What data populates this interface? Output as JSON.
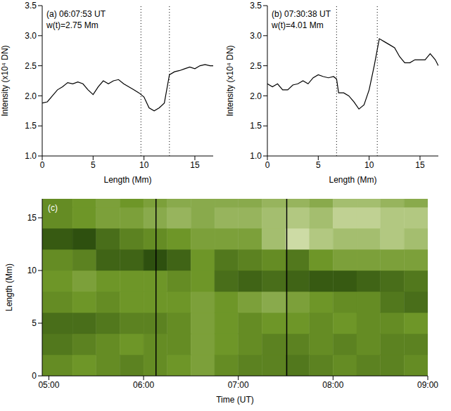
{
  "chart_data": [
    {
      "type": "line",
      "annotations": [
        "(a) 06:07:53 UT",
        "w(t)=2.75 Mm"
      ],
      "x_label": "Length (Mm)",
      "y_label": "Intensity (x10⁴ DN)",
      "x": [
        0,
        0.5,
        1,
        1.5,
        2,
        2.5,
        3,
        3.5,
        4,
        4.5,
        5,
        5.5,
        6,
        6.5,
        7,
        7.5,
        8,
        8.5,
        9,
        9.5,
        10,
        10.5,
        11,
        11.5,
        12,
        12.5,
        13,
        13.5,
        14,
        14.5,
        15,
        15.5,
        16,
        16.5,
        16.8
      ],
      "values": [
        1.88,
        1.9,
        2.0,
        2.1,
        2.15,
        2.22,
        2.2,
        2.23,
        2.2,
        2.1,
        2.02,
        2.15,
        2.25,
        2.2,
        2.25,
        2.27,
        2.2,
        2.15,
        2.1,
        2.05,
        1.98,
        1.8,
        1.75,
        1.8,
        1.88,
        2.35,
        2.4,
        2.42,
        2.45,
        2.48,
        2.45,
        2.5,
        2.52,
        2.5,
        2.5
      ],
      "color": "#000000",
      "vlines": [
        9.7,
        12.5
      ],
      "xlim": [
        0,
        16.8
      ],
      "xticks": [
        0,
        5,
        10,
        15
      ],
      "ylim": [
        1,
        3.5
      ],
      "yticks": [
        {
          "value": 1,
          "label": "1.0"
        },
        1.5,
        {
          "value": 2,
          "label": "2.0"
        },
        2.5,
        {
          "value": 3,
          "label": "3.0"
        },
        3.5
      ]
    },
    {
      "type": "line",
      "annotations": [
        "(b) 07:30:38 UT",
        "w(t)=4.01 Mm"
      ],
      "x_label": "Length (Mm)",
      "y_label": "Intensity (x10⁴ DN)",
      "x": [
        0,
        0.5,
        1,
        1.5,
        2,
        2.5,
        3,
        3.5,
        4,
        4.5,
        5,
        5.5,
        6,
        6.5,
        6.8,
        7,
        7.5,
        8,
        8.5,
        9,
        9.5,
        10,
        10.5,
        11,
        11.5,
        12,
        12.5,
        13,
        13.5,
        14,
        14.5,
        15,
        15.5,
        16,
        16.5,
        16.8
      ],
      "values": [
        2.2,
        2.15,
        2.2,
        2.1,
        2.1,
        2.18,
        2.2,
        2.25,
        2.2,
        2.3,
        2.35,
        2.32,
        2.3,
        2.32,
        2.28,
        2.05,
        2.05,
        2.0,
        1.9,
        1.78,
        1.85,
        2.1,
        2.5,
        2.95,
        2.9,
        2.85,
        2.8,
        2.65,
        2.55,
        2.55,
        2.6,
        2.6,
        2.6,
        2.7,
        2.6,
        2.5
      ],
      "color": "#000000",
      "vlines": [
        6.8,
        10.8
      ],
      "xlim": [
        0,
        16.8
      ],
      "xticks": [
        0,
        5,
        10,
        15
      ],
      "ylim": [
        1,
        3.5
      ],
      "yticks": [
        {
          "value": 1,
          "label": "1.0"
        },
        1.5,
        {
          "value": 2,
          "label": "2.0"
        },
        2.5,
        {
          "value": 3,
          "label": "3.0"
        },
        3.5
      ]
    },
    {
      "type": "heatmap",
      "annotations": [
        "(c)"
      ],
      "x_label": "Time (UT)",
      "y_label": "Length (Mm)",
      "x_edges": [
        4.93,
        5.25,
        5.5,
        5.75,
        6.0,
        6.25,
        6.5,
        6.75,
        7.0,
        7.25,
        7.5,
        7.75,
        8.0,
        8.25,
        8.5,
        8.75,
        9.0
      ],
      "y_edges": [
        0,
        2,
        4,
        6,
        8,
        10,
        12,
        14,
        16,
        16.8
      ],
      "cells": [
        [
          0.45,
          0.5,
          0.45,
          0.4,
          0.45,
          0.5,
          0.55,
          0.45,
          0.4,
          0.4,
          0.35,
          0.4,
          0.45,
          0.4,
          0.4,
          0.45
        ],
        [
          0.35,
          0.4,
          0.45,
          0.5,
          0.45,
          0.45,
          0.55,
          0.5,
          0.45,
          0.4,
          0.4,
          0.45,
          0.4,
          0.45,
          0.4,
          0.4
        ],
        [
          0.3,
          0.3,
          0.35,
          0.4,
          0.4,
          0.45,
          0.55,
          0.5,
          0.45,
          0.5,
          0.5,
          0.45,
          0.5,
          0.45,
          0.45,
          0.5
        ],
        [
          0.45,
          0.5,
          0.45,
          0.5,
          0.5,
          0.5,
          0.55,
          0.5,
          0.55,
          0.6,
          0.55,
          0.5,
          0.45,
          0.45,
          0.35,
          0.3
        ],
        [
          0.5,
          0.55,
          0.5,
          0.5,
          0.5,
          0.45,
          0.5,
          0.3,
          0.25,
          0.3,
          0.25,
          0.2,
          0.2,
          0.25,
          0.3,
          0.35
        ],
        [
          0.45,
          0.4,
          0.25,
          0.25,
          0.15,
          0.25,
          0.5,
          0.35,
          0.4,
          0.45,
          0.35,
          0.5,
          0.55,
          0.55,
          0.55,
          0.55
        ],
        [
          0.2,
          0.15,
          0.3,
          0.4,
          0.45,
          0.5,
          0.55,
          0.55,
          0.55,
          0.7,
          0.85,
          0.75,
          0.7,
          0.7,
          0.75,
          0.7
        ],
        [
          0.45,
          0.5,
          0.55,
          0.55,
          0.6,
          0.65,
          0.6,
          0.65,
          0.65,
          0.7,
          0.75,
          0.7,
          0.8,
          0.8,
          0.75,
          0.75
        ],
        [
          0.45,
          0.5,
          0.55,
          0.5,
          0.55,
          0.6,
          0.6,
          0.6,
          0.6,
          0.65,
          0.65,
          0.6,
          0.7,
          0.7,
          0.65,
          0.6
        ]
      ],
      "vlines": [
        6.131,
        7.511
      ],
      "xlim": [
        4.93,
        9.0
      ],
      "xticks": [
        {
          "value": 5,
          "label": "05:00"
        },
        {
          "value": 6,
          "label": "06:00"
        },
        {
          "value": 7,
          "label": "07:00"
        },
        {
          "value": 8,
          "label": "08:00"
        },
        {
          "value": 9,
          "label": "09:00"
        }
      ],
      "ylim": [
        0,
        16.8
      ],
      "yticks": [
        0,
        5,
        10,
        15
      ]
    }
  ]
}
